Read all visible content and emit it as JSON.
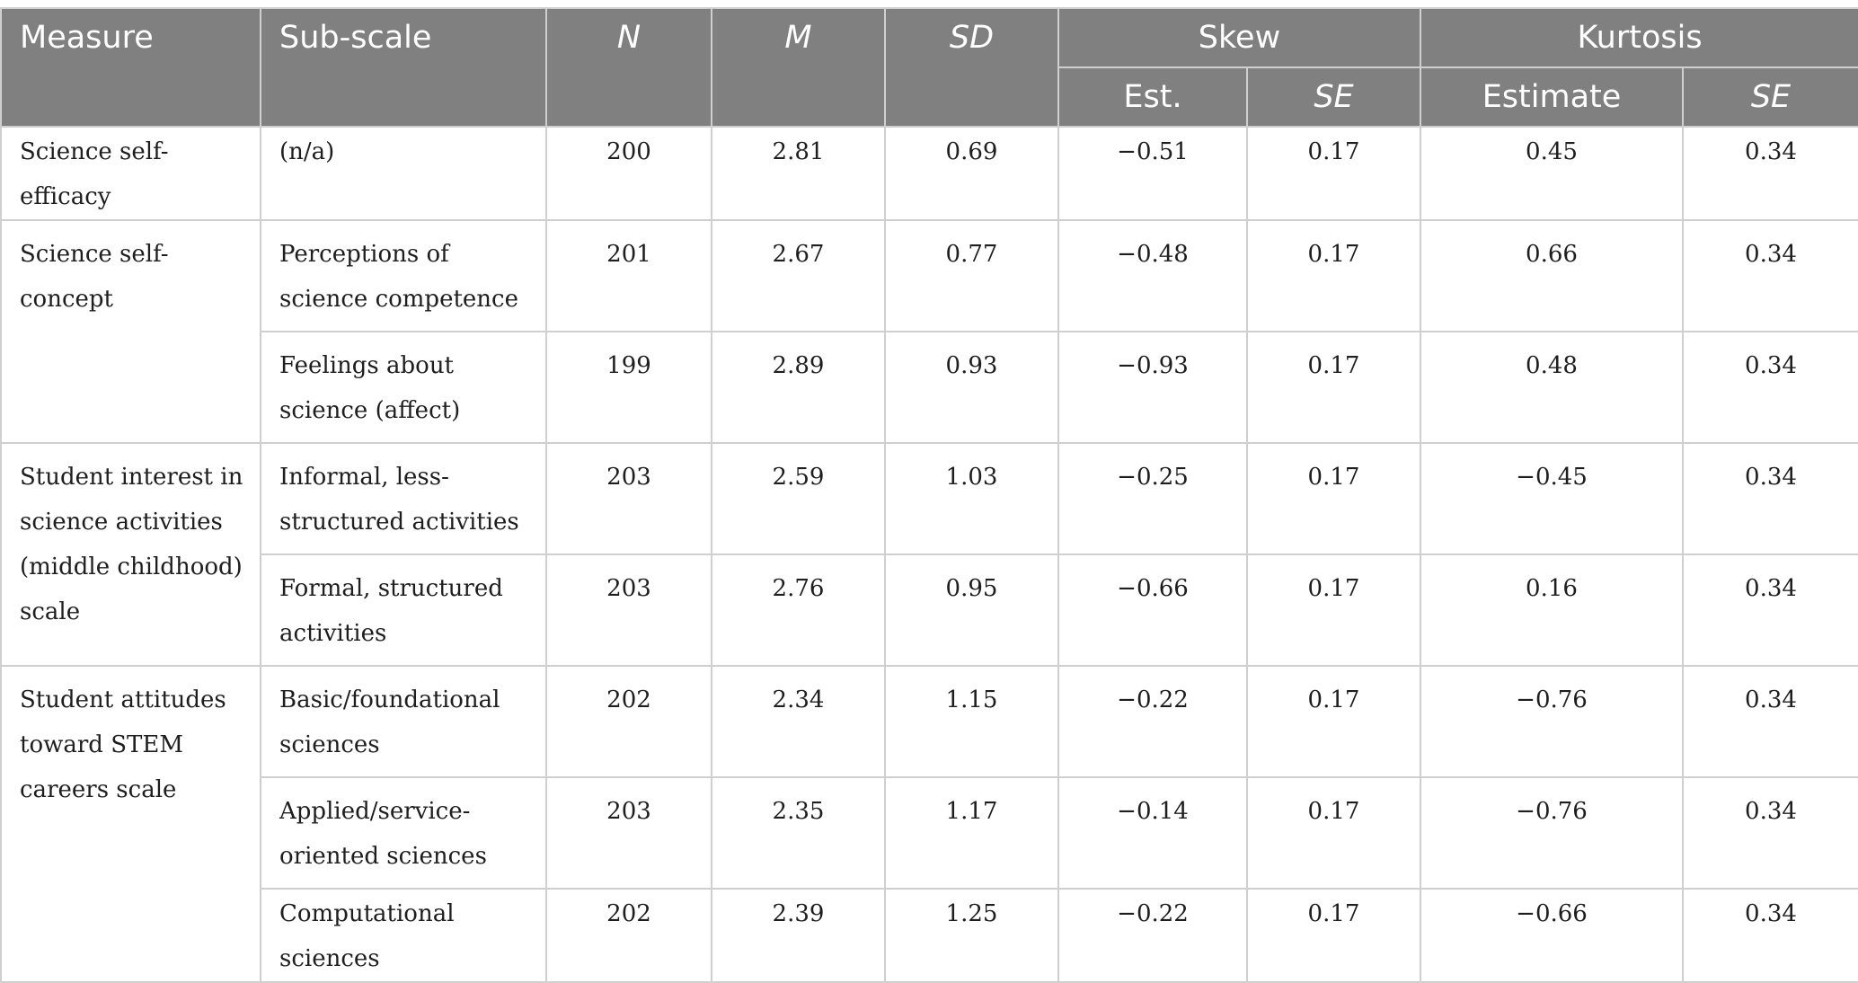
{
  "header": {
    "measure": "Measure",
    "subscale": "Sub-scale",
    "n": "N",
    "m": "M",
    "sd": "SD",
    "skew": "Skew",
    "kurtosis": "Kurtosis",
    "skew_est": "Est.",
    "skew_se": "SE",
    "kurt_est": "Estimate",
    "kurt_se": "SE"
  },
  "groups": [
    {
      "measure": "Science self-efficacy",
      "rows": [
        {
          "subscale": "(n/a)",
          "n": "200",
          "m": "2.81",
          "sd": "0.69",
          "skew_est": "−0.51",
          "skew_se": "0.17",
          "kurt_est": "0.45",
          "kurt_se": "0.34"
        }
      ]
    },
    {
      "measure": "Science self-concept",
      "rows": [
        {
          "subscale": "Perceptions of science competence",
          "n": "201",
          "m": "2.67",
          "sd": "0.77",
          "skew_est": "−0.48",
          "skew_se": "0.17",
          "kurt_est": "0.66",
          "kurt_se": "0.34"
        },
        {
          "subscale": "Feelings about science (affect)",
          "n": "199",
          "m": "2.89",
          "sd": "0.93",
          "skew_est": "−0.93",
          "skew_se": "0.17",
          "kurt_est": "0.48",
          "kurt_se": "0.34"
        }
      ]
    },
    {
      "measure": "Student interest in science activities (middle childhood) scale",
      "rows": [
        {
          "subscale": "Informal, less-structured activities",
          "n": "203",
          "m": "2.59",
          "sd": "1.03",
          "skew_est": "−0.25",
          "skew_se": "0.17",
          "kurt_est": "−0.45",
          "kurt_se": "0.34"
        },
        {
          "subscale": "Formal, structured activities",
          "n": "203",
          "m": "2.76",
          "sd": "0.95",
          "skew_est": "−0.66",
          "skew_se": "0.17",
          "kurt_est": "0.16",
          "kurt_se": "0.34"
        }
      ]
    },
    {
      "measure": "Student attitudes toward STEM careers scale",
      "rows": [
        {
          "subscale": "Basic/foundational sciences",
          "n": "202",
          "m": "2.34",
          "sd": "1.15",
          "skew_est": "−0.22",
          "skew_se": "0.17",
          "kurt_est": "−0.76",
          "kurt_se": "0.34"
        },
        {
          "subscale": "Applied/service-oriented sciences",
          "n": "203",
          "m": "2.35",
          "sd": "1.17",
          "skew_est": "−0.14",
          "skew_se": "0.17",
          "kurt_est": "−0.76",
          "kurt_se": "0.34"
        },
        {
          "subscale": "Computational sciences",
          "n": "202",
          "m": "2.39",
          "sd": "1.25",
          "skew_est": "−0.22",
          "skew_se": "0.17",
          "kurt_est": "−0.66",
          "kurt_se": "0.34"
        }
      ]
    }
  ]
}
